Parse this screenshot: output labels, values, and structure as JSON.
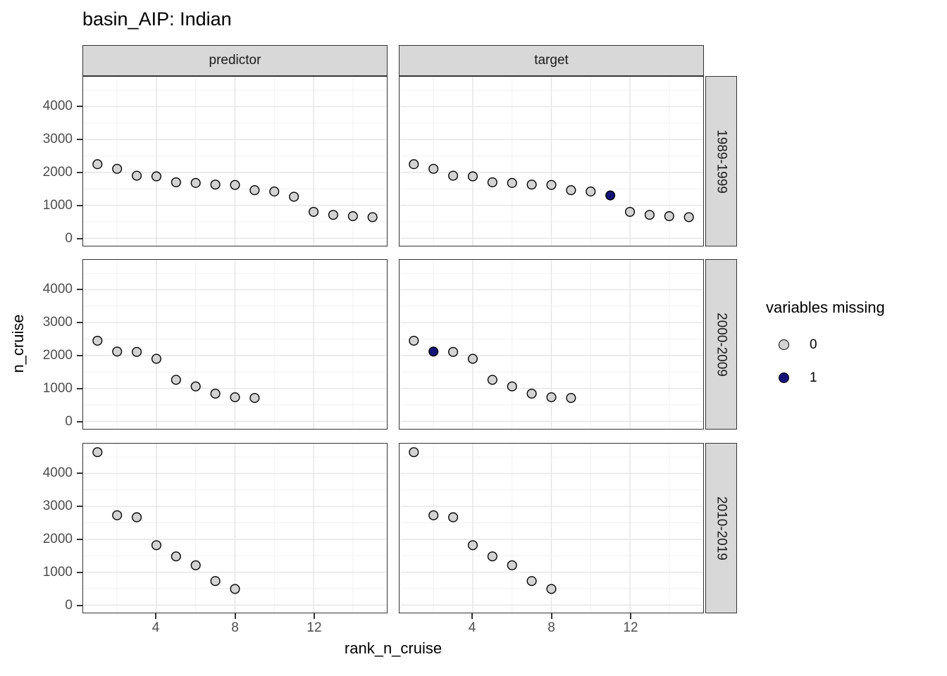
{
  "title": "basin_AIP: Indian",
  "axes": {
    "x_title": "rank_n_cruise",
    "y_title": "n_cruise",
    "x_ticks": [
      4,
      8,
      12
    ],
    "x_minor": [
      2,
      6,
      10,
      14
    ],
    "y_ticks": [
      0,
      1000,
      2000,
      3000,
      4000
    ],
    "y_minor": [
      500,
      1500,
      2500,
      3500,
      4500
    ],
    "x_domain": [
      0.3,
      15.7
    ],
    "y_domain": [
      -230,
      4910
    ]
  },
  "facets": {
    "columns": [
      "predictor",
      "target"
    ],
    "rows": [
      "1989-1999",
      "2000-2009",
      "2010-2019"
    ]
  },
  "legend": {
    "title": "variables missing",
    "items": [
      {
        "label": "0",
        "color": "#d3d3d3"
      },
      {
        "label": "1",
        "color": "#141478"
      }
    ]
  },
  "colors": {
    "point_fill": "#d3d3d3",
    "point_missing_fill": "#141478",
    "point_stroke": "#000000",
    "strip_bg": "#d8d8d8",
    "panel_border": "#333333",
    "grid_major": "#e5e5e5",
    "grid_minor": "#f1f1f1",
    "tick_text": "#4d4d4d"
  },
  "chart_data": {
    "type": "scatter",
    "title": "basin_AIP: Indian",
    "xlabel": "rank_n_cruise",
    "ylabel": "n_cruise",
    "xlim": [
      0.3,
      15.7
    ],
    "ylim": [
      -230,
      4910
    ],
    "grid": true,
    "legend_title": "variables missing",
    "legend_position": "right",
    "facet_cols": [
      "predictor",
      "target"
    ],
    "facet_rows": [
      "1989-1999",
      "2000-2009",
      "2010-2019"
    ],
    "series": [
      {
        "name": "predictor 1989-1999",
        "facet_col": "predictor",
        "facet_row": "1989-1999",
        "x": [
          1,
          2,
          3,
          4,
          5,
          6,
          7,
          8,
          9,
          10,
          11,
          12,
          13,
          14,
          15
        ],
        "y": [
          2250,
          2110,
          1900,
          1880,
          1700,
          1680,
          1630,
          1620,
          1460,
          1420,
          1260,
          800,
          710,
          670,
          640
        ],
        "missing": [
          0,
          0,
          0,
          0,
          0,
          0,
          0,
          0,
          0,
          0,
          0,
          0,
          0,
          0,
          0
        ]
      },
      {
        "name": "target 1989-1999",
        "facet_col": "target",
        "facet_row": "1989-1999",
        "x": [
          1,
          2,
          3,
          4,
          5,
          6,
          7,
          8,
          9,
          10,
          11,
          12,
          13,
          14,
          15
        ],
        "y": [
          2250,
          2110,
          1900,
          1880,
          1700,
          1680,
          1630,
          1620,
          1460,
          1420,
          1300,
          800,
          710,
          670,
          640
        ],
        "missing": [
          0,
          0,
          0,
          0,
          0,
          0,
          0,
          0,
          0,
          0,
          1,
          0,
          0,
          0,
          0
        ]
      },
      {
        "name": "predictor 2000-2009",
        "facet_col": "predictor",
        "facet_row": "2000-2009",
        "x": [
          1,
          2,
          3,
          4,
          5,
          6,
          7,
          8,
          9
        ],
        "y": [
          2450,
          2120,
          2110,
          1900,
          1260,
          1060,
          840,
          730,
          710
        ],
        "missing": [
          0,
          0,
          0,
          0,
          0,
          0,
          0,
          0,
          0
        ]
      },
      {
        "name": "target 2000-2009",
        "facet_col": "target",
        "facet_row": "2000-2009",
        "x": [
          1,
          2,
          3,
          4,
          5,
          6,
          7,
          8,
          9
        ],
        "y": [
          2450,
          2120,
          2110,
          1900,
          1260,
          1060,
          840,
          730,
          710
        ],
        "missing": [
          0,
          1,
          0,
          0,
          0,
          0,
          0,
          0,
          0
        ]
      },
      {
        "name": "predictor 2010-2019",
        "facet_col": "predictor",
        "facet_row": "2010-2019",
        "x": [
          1,
          2,
          3,
          4,
          5,
          6,
          7,
          8
        ],
        "y": [
          4650,
          2730,
          2670,
          1820,
          1480,
          1210,
          730,
          490
        ],
        "missing": [
          0,
          0,
          0,
          0,
          0,
          0,
          0,
          0
        ]
      },
      {
        "name": "target 2010-2019",
        "facet_col": "target",
        "facet_row": "2010-2019",
        "x": [
          1,
          2,
          3,
          4,
          5,
          6,
          7,
          8
        ],
        "y": [
          4650,
          2730,
          2670,
          1820,
          1480,
          1210,
          730,
          490
        ],
        "missing": [
          0,
          0,
          0,
          0,
          0,
          0,
          0,
          0
        ]
      }
    ]
  }
}
